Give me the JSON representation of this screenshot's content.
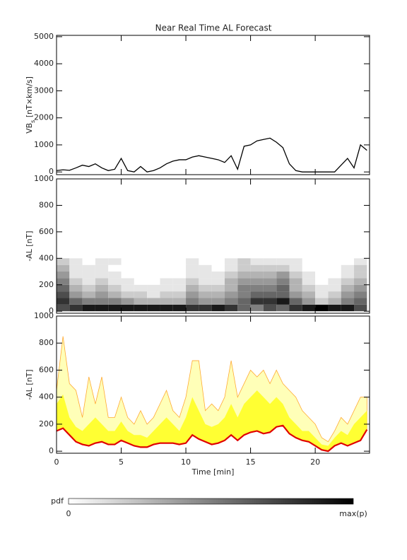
{
  "chart_data": [
    {
      "type": "line",
      "title": "Near Real Time AL Forecast",
      "ylabel": {
        "main": "VB",
        "sub": "s",
        "unit": " [nT×km/s]"
      },
      "xlim": [
        0,
        24.2
      ],
      "xticks": [
        0,
        5,
        10,
        15,
        20
      ],
      "ylim": [
        -100,
        5050
      ],
      "yticks": [
        0,
        1000,
        2000,
        3000,
        4000,
        5000
      ],
      "color": "#000000",
      "x": [
        0,
        0.5,
        1,
        1.5,
        2,
        2.5,
        3,
        3.5,
        4,
        4.5,
        5,
        5.5,
        6,
        6.5,
        7,
        7.5,
        8,
        8.5,
        9,
        9.5,
        10,
        10.5,
        11,
        11.5,
        12,
        12.5,
        13,
        13.5,
        14,
        14.5,
        15,
        15.5,
        16,
        16.5,
        17,
        17.5,
        18,
        18.5,
        19,
        19.5,
        20,
        20.5,
        21,
        21.5,
        22,
        22.5,
        23,
        23.5,
        24
      ],
      "values": [
        50,
        80,
        60,
        150,
        250,
        200,
        300,
        150,
        50,
        100,
        500,
        50,
        0,
        200,
        0,
        50,
        150,
        300,
        400,
        450,
        450,
        550,
        600,
        550,
        500,
        450,
        350,
        600,
        100,
        950,
        1000,
        1150,
        1200,
        1250,
        1100,
        900,
        300,
        50,
        0,
        0,
        0,
        0,
        0,
        0,
        250,
        500,
        150,
        1000,
        800
      ]
    },
    {
      "type": "heatmap",
      "ylabel": "-AL [nT]",
      "xlim": [
        0,
        24.2
      ],
      "xticks": [
        0,
        5,
        10,
        15,
        20
      ],
      "ylim": [
        -15,
        1000
      ],
      "yticks": [
        0,
        200,
        400,
        600,
        800,
        1000
      ],
      "xbins": [
        0,
        1,
        2,
        3,
        4,
        5,
        6,
        7,
        8,
        9,
        10,
        11,
        12,
        13,
        14,
        15,
        16,
        17,
        18,
        19,
        20,
        21,
        22,
        23,
        24
      ],
      "ybins": [
        0,
        50,
        100,
        150,
        200,
        250,
        300,
        350,
        400
      ],
      "values": [
        [
          0.7,
          0.8,
          0.9,
          0.9,
          0.9,
          0.9,
          0.9,
          0.9,
          0.9,
          0.9,
          0.8,
          0.8,
          0.9,
          0.8,
          0.6,
          0.5,
          0.7,
          0.6,
          0.8,
          0.9,
          1,
          0.9,
          0.9,
          0.7
        ],
        [
          0.8,
          0.6,
          0.5,
          0.5,
          0.5,
          0.4,
          0.3,
          0.3,
          0.3,
          0.3,
          0.5,
          0.4,
          0.4,
          0.5,
          0.6,
          0.8,
          0.8,
          0.9,
          0.6,
          0.4,
          0.2,
          0.3,
          0.5,
          0.6
        ],
        [
          0.7,
          0.4,
          0.3,
          0.4,
          0.3,
          0.2,
          0.2,
          0.1,
          0.2,
          0.2,
          0.4,
          0.3,
          0.3,
          0.4,
          0.5,
          0.6,
          0.6,
          0.6,
          0.4,
          0.3,
          0.1,
          0.2,
          0.4,
          0.5
        ],
        [
          0.6,
          0.3,
          0.2,
          0.3,
          0.2,
          0.1,
          0.1,
          0.1,
          0.1,
          0.1,
          0.3,
          0.2,
          0.2,
          0.3,
          0.5,
          0.5,
          0.5,
          0.6,
          0.3,
          0.2,
          0.1,
          0.1,
          0.3,
          0.4
        ],
        [
          0.5,
          0.2,
          0.1,
          0.2,
          0.1,
          0.1,
          0,
          0,
          0.1,
          0.1,
          0.2,
          0.1,
          0.1,
          0.3,
          0.4,
          0.4,
          0.4,
          0.5,
          0.3,
          0.1,
          0,
          0.1,
          0.2,
          0.3
        ],
        [
          0.4,
          0.1,
          0.1,
          0.1,
          0.1,
          0,
          0,
          0,
          0,
          0,
          0.1,
          0.1,
          0.1,
          0.2,
          0.3,
          0.3,
          0.3,
          0.4,
          0.2,
          0.1,
          0,
          0,
          0.1,
          0.2
        ],
        [
          0.3,
          0.1,
          0.1,
          0.1,
          0,
          0,
          0,
          0,
          0,
          0,
          0.1,
          0.1,
          0,
          0.1,
          0.2,
          0.2,
          0.2,
          0.2,
          0.1,
          0,
          0,
          0,
          0.1,
          0.2
        ],
        [
          0.2,
          0.1,
          0,
          0.1,
          0.1,
          0,
          0,
          0,
          0,
          0,
          0.1,
          0,
          0,
          0.1,
          0.2,
          0.1,
          0.1,
          0.1,
          0.1,
          0,
          0,
          0,
          0,
          0.1
        ]
      ],
      "colorbar": {
        "label": "pdf",
        "min_label": "0",
        "max_label": "max(p)"
      }
    },
    {
      "type": "band",
      "ylabel": "-AL [nT]",
      "xlabel": "Time [min]",
      "xlim": [
        0,
        24.2
      ],
      "xticks": [
        0,
        5,
        10,
        15,
        20
      ],
      "ylim": [
        -15,
        1000
      ],
      "yticks": [
        0,
        200,
        400,
        600,
        800,
        1000
      ],
      "x": [
        0,
        0.5,
        1,
        1.5,
        2,
        2.5,
        3,
        3.5,
        4,
        4.5,
        5,
        5.5,
        6,
        6.5,
        7,
        7.5,
        8,
        8.5,
        9,
        9.5,
        10,
        10.5,
        11,
        11.5,
        12,
        12.5,
        13,
        13.5,
        14,
        14.5,
        15,
        15.5,
        16,
        16.5,
        17,
        17.5,
        18,
        18.5,
        19,
        19.5,
        20,
        20.5,
        21,
        21.5,
        22,
        22.5,
        23,
        23.5,
        24
      ],
      "series": [
        {
          "color": "#e00000",
          "values": [
            150,
            170,
            120,
            70,
            50,
            40,
            60,
            70,
            50,
            50,
            80,
            60,
            40,
            30,
            30,
            50,
            60,
            60,
            60,
            50,
            60,
            120,
            90,
            70,
            50,
            60,
            80,
            120,
            80,
            120,
            140,
            150,
            130,
            140,
            180,
            190,
            130,
            100,
            80,
            70,
            40,
            10,
            0,
            40,
            60,
            40,
            60,
            80,
            160
          ]
        },
        {
          "color": "#ffff33",
          "values": [
            350,
            420,
            250,
            180,
            150,
            200,
            250,
            200,
            150,
            150,
            220,
            150,
            120,
            120,
            100,
            150,
            200,
            250,
            200,
            150,
            250,
            400,
            300,
            200,
            180,
            200,
            250,
            350,
            250,
            350,
            400,
            450,
            400,
            350,
            400,
            350,
            250,
            200,
            150,
            150,
            100,
            50,
            40,
            100,
            150,
            120,
            200,
            250,
            300
          ]
        },
        {
          "color": "#ffffb8",
          "edge_color": "#ffaa33",
          "values": [
            450,
            850,
            500,
            450,
            250,
            550,
            350,
            550,
            250,
            250,
            400,
            250,
            200,
            300,
            200,
            250,
            350,
            450,
            300,
            250,
            400,
            670,
            670,
            300,
            350,
            300,
            400,
            670,
            400,
            500,
            600,
            550,
            600,
            500,
            600,
            500,
            450,
            400,
            300,
            250,
            200,
            100,
            70,
            150,
            250,
            200,
            300,
            400,
            400
          ]
        }
      ]
    }
  ]
}
